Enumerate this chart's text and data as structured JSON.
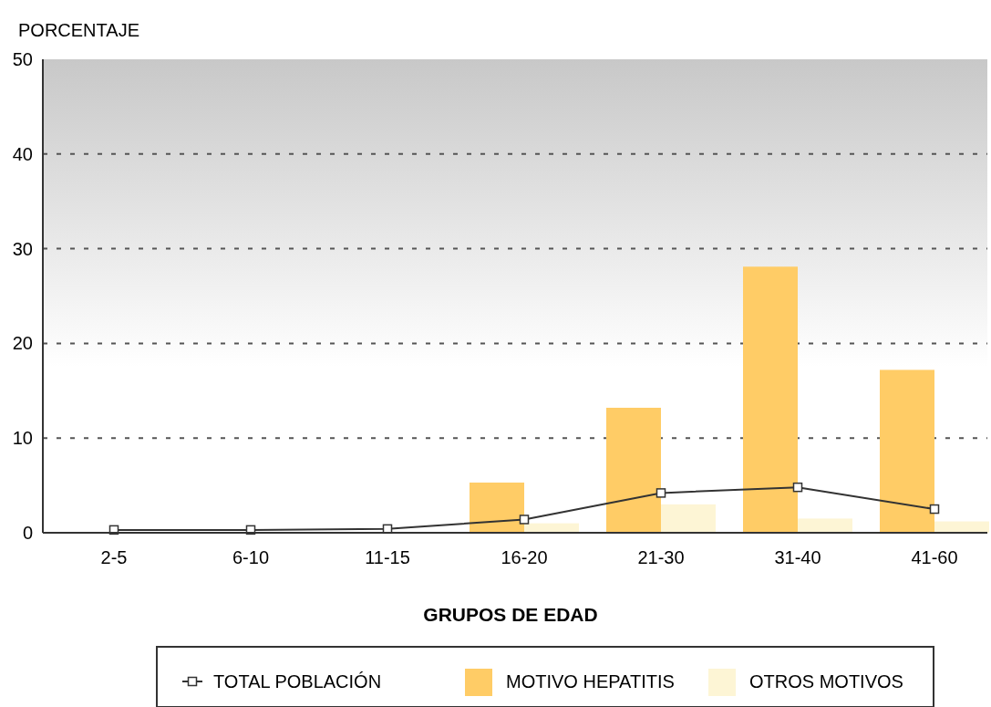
{
  "chart_data": {
    "type": "bar",
    "ylabel": "PORCENTAJE",
    "xlabel": "GRUPOS DE EDAD",
    "categories": [
      "2-5",
      "6-10",
      "11-15",
      "16-20",
      "21-30",
      "31-40",
      "41-60"
    ],
    "series": [
      {
        "name": "TOTAL POBLACIÓN",
        "type": "line",
        "color": "#333333",
        "values": [
          0.3,
          0.3,
          0.4,
          1.4,
          4.2,
          4.8,
          2.5
        ]
      },
      {
        "name": "MOTIVO HEPATITIS",
        "color": "#ffcc66",
        "values": [
          0,
          0,
          0,
          5.3,
          13.2,
          28.1,
          17.2
        ]
      },
      {
        "name": "OTROS MOTIVOS",
        "color": "#fdf5d5",
        "values": [
          0,
          0,
          0,
          1.0,
          3.0,
          1.5,
          1.2
        ]
      }
    ],
    "ylim": [
      0,
      50
    ],
    "yticks": [
      0,
      10,
      20,
      30,
      40,
      50
    ],
    "grid": "y",
    "legend": "bottom",
    "marker": "square",
    "line_style": "solid"
  }
}
